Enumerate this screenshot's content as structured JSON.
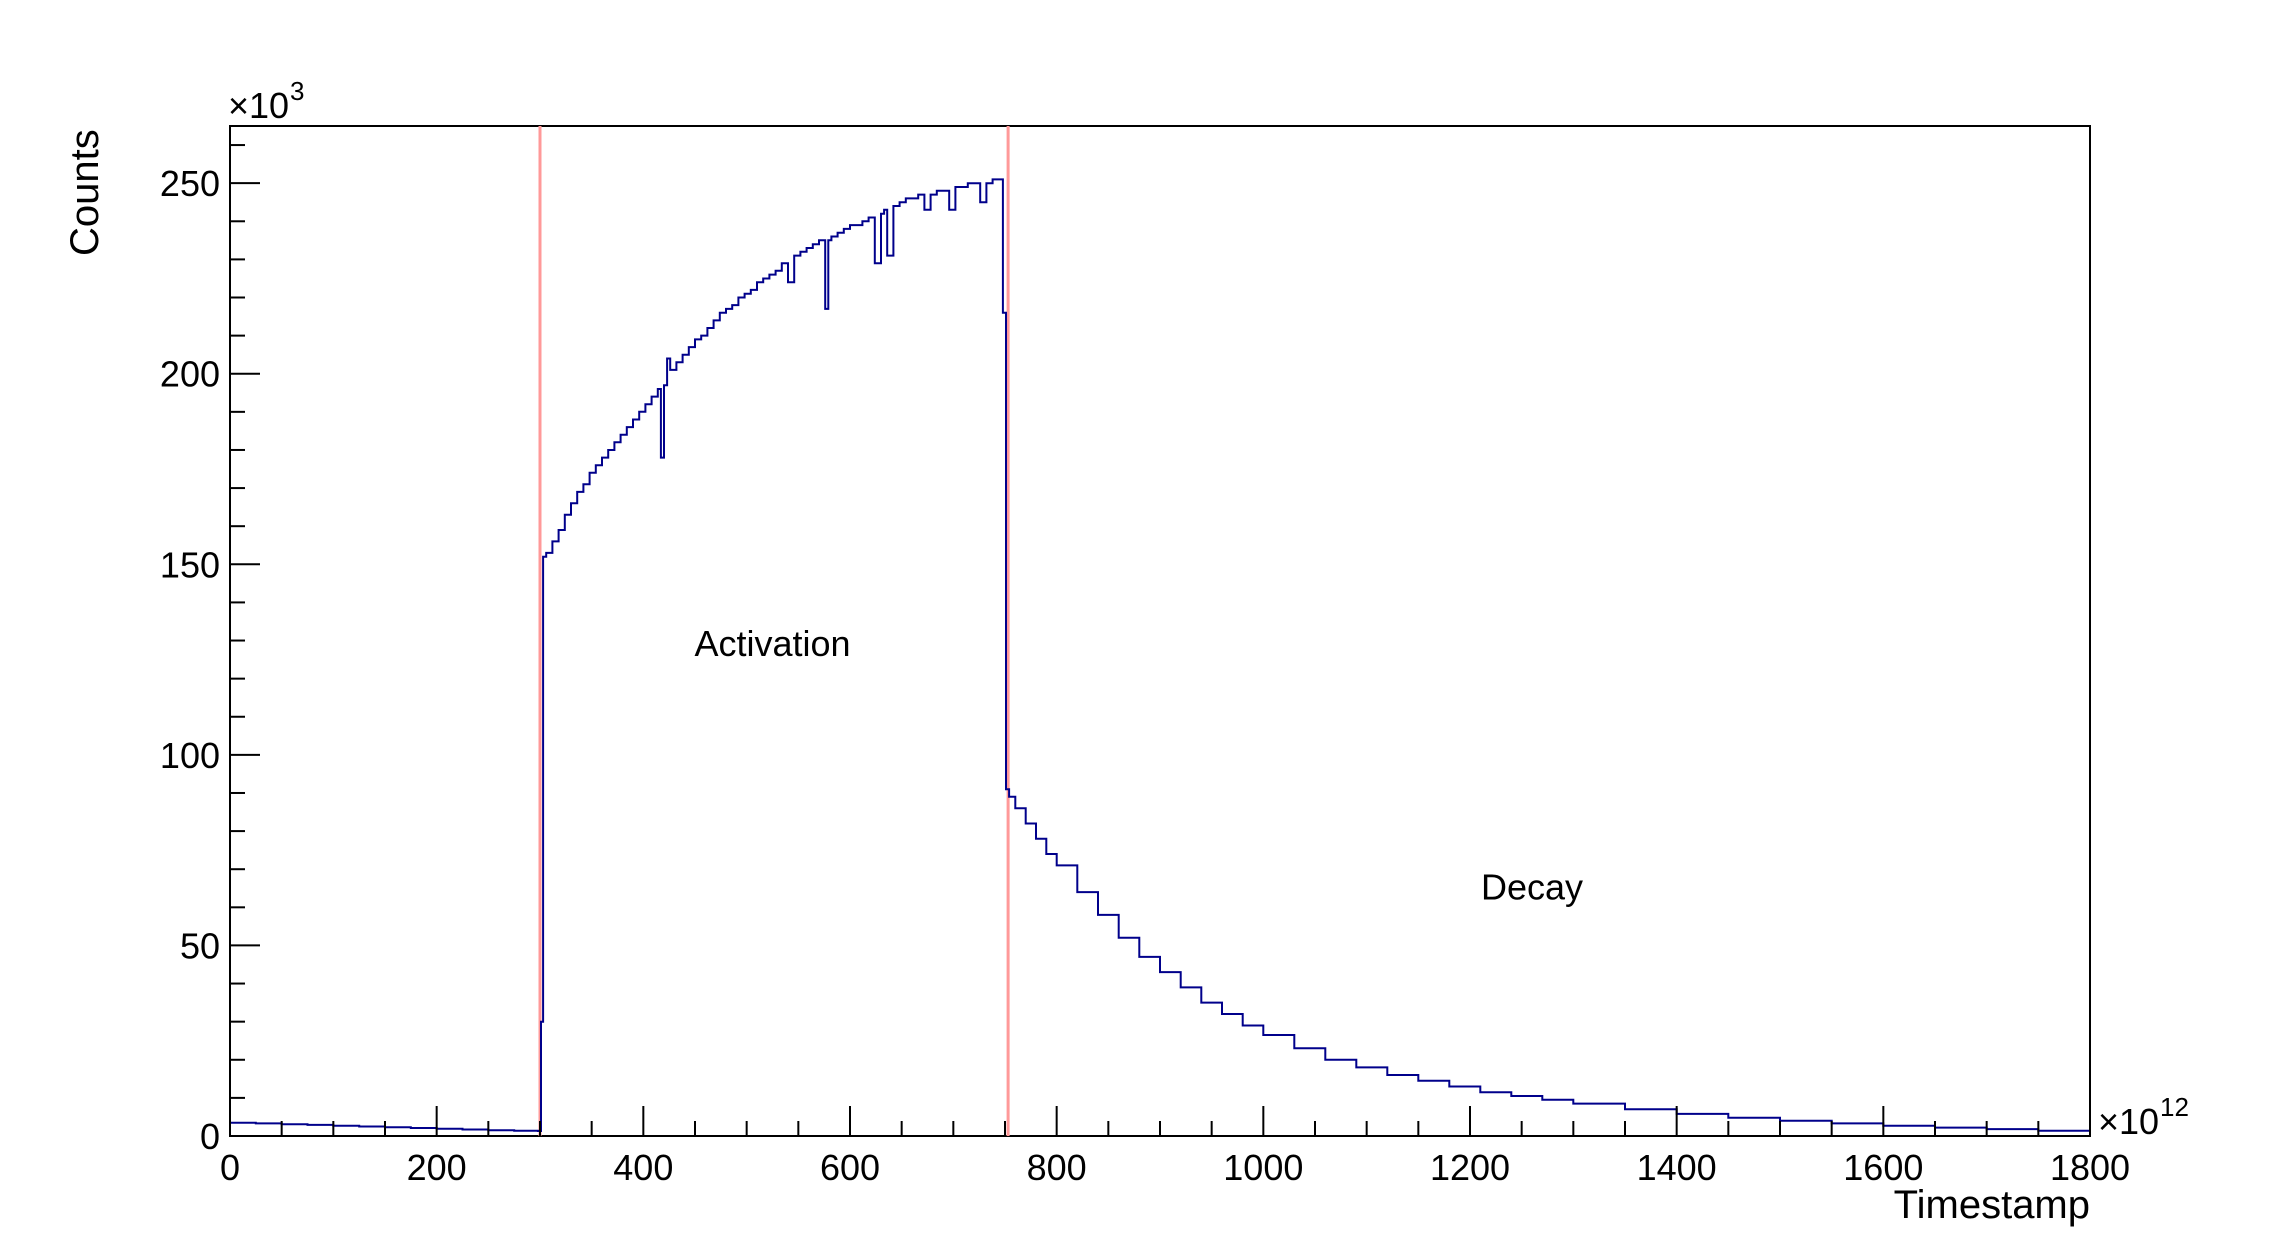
{
  "chart_data": {
    "type": "line",
    "xlabel": "Timestamp",
    "ylabel": "Counts",
    "x_multiplier": "×10",
    "x_multiplier_exp": "12",
    "y_multiplier": "×10",
    "y_multiplier_exp": "3",
    "xlim": [
      0,
      1800
    ],
    "ylim": [
      0,
      265
    ],
    "x_ticks": [
      0,
      200,
      400,
      600,
      800,
      1000,
      1200,
      1400,
      1600,
      1800
    ],
    "y_ticks": [
      0,
      50,
      100,
      150,
      200,
      250
    ],
    "x_tick_labels": [
      "0",
      "200",
      "400",
      "600",
      "800",
      "1000",
      "1200",
      "1400",
      "1600",
      "1800"
    ],
    "y_tick_labels": [
      "0",
      "50",
      "100",
      "150",
      "200",
      "250"
    ],
    "grid": false,
    "annotations": [
      {
        "text": "Activation",
        "x": 525,
        "y": 126
      },
      {
        "text": "Decay",
        "x": 1260,
        "y": 62
      }
    ],
    "markers": [
      {
        "x": 300,
        "color": "#ff9999"
      },
      {
        "x": 753,
        "color": "#ff9999"
      }
    ],
    "series": [
      {
        "color": "#00008b",
        "x": [
          0,
          25,
          50,
          75,
          100,
          125,
          150,
          175,
          200,
          225,
          250,
          275,
          298,
          301,
          303,
          306,
          312,
          318,
          324,
          330,
          336,
          342,
          348,
          354,
          360,
          366,
          372,
          378,
          384,
          390,
          396,
          402,
          408,
          414,
          417,
          420,
          423,
          426,
          432,
          438,
          444,
          450,
          456,
          462,
          468,
          474,
          480,
          486,
          492,
          498,
          504,
          510,
          516,
          522,
          528,
          534,
          540,
          546,
          552,
          558,
          564,
          570,
          576,
          579,
          582,
          588,
          594,
          600,
          606,
          612,
          618,
          624,
          630,
          633,
          636,
          642,
          648,
          654,
          660,
          666,
          672,
          678,
          684,
          690,
          696,
          702,
          708,
          714,
          720,
          726,
          732,
          738,
          744,
          748,
          751,
          754,
          760,
          770,
          780,
          790,
          800,
          820,
          840,
          860,
          880,
          900,
          920,
          940,
          960,
          980,
          1000,
          1030,
          1060,
          1090,
          1120,
          1150,
          1180,
          1210,
          1240,
          1270,
          1300,
          1350,
          1400,
          1450,
          1500,
          1550,
          1600,
          1650,
          1700,
          1750,
          1800
        ],
        "values": [
          3.5,
          3.3,
          3.1,
          2.9,
          2.7,
          2.5,
          2.3,
          2.1,
          1.9,
          1.7,
          1.5,
          1.4,
          1.3,
          30,
          152,
          153,
          156,
          159,
          163,
          166,
          169,
          171,
          174,
          176,
          178,
          180,
          182,
          184,
          186,
          188,
          190,
          192,
          194,
          196,
          178,
          197,
          204,
          201,
          203,
          205,
          207,
          209,
          210,
          212,
          214,
          216,
          217,
          218,
          220,
          221,
          222,
          224,
          225,
          226,
          227,
          229,
          224,
          231,
          232,
          233,
          234,
          235,
          217,
          235,
          236,
          237,
          238,
          239,
          239,
          240,
          241,
          229,
          242,
          243,
          231,
          244,
          245,
          246,
          246,
          247,
          243,
          247,
          248,
          248,
          243,
          249,
          249,
          250,
          250,
          245,
          250,
          251,
          251,
          216,
          91,
          89,
          86,
          82,
          78,
          74,
          71,
          64,
          58,
          52,
          47,
          43,
          39,
          35,
          32,
          29,
          26.5,
          23,
          20,
          18,
          16,
          14.5,
          13,
          11.5,
          10.5,
          9.5,
          8.5,
          7,
          5.8,
          4.8,
          4.0,
          3.3,
          2.7,
          2.2,
          1.8,
          1.4,
          1.1
        ]
      }
    ]
  }
}
